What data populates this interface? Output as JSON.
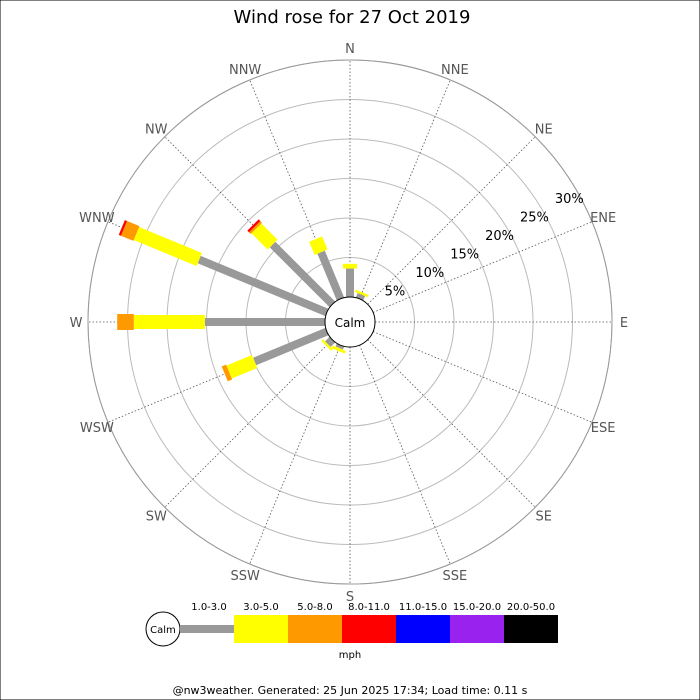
{
  "chart_data": {
    "type": "wind-rose",
    "title": "Wind rose for 27 Oct 2019",
    "directions": [
      "N",
      "NNE",
      "NE",
      "ENE",
      "E",
      "ESE",
      "SE",
      "SSE",
      "S",
      "SSW",
      "SW",
      "WSW",
      "W",
      "WNW",
      "NW",
      "NNW"
    ],
    "ring_labels": [
      "5%",
      "10%",
      "15%",
      "20%",
      "25%",
      "30%"
    ],
    "ring_values": [
      5,
      10,
      15,
      20,
      25,
      30
    ],
    "r_max": 30,
    "calm_label": "Calm",
    "unit": "mph",
    "speed_bins": [
      {
        "label": "1.0-3.0",
        "color": "#999999"
      },
      {
        "label": "3.0-5.0",
        "color": "#ffff00"
      },
      {
        "label": "5.0-8.0",
        "color": "#ff9900"
      },
      {
        "label": "8.0-11.0",
        "color": "#ff0000"
      },
      {
        "label": "11.0-15.0",
        "color": "#0000ff"
      },
      {
        "label": "15.0-20.0",
        "color": "#9922ee"
      },
      {
        "label": "20.0-50.0",
        "color": "#000000"
      }
    ],
    "series": [
      {
        "direction": "N",
        "values": [
          3.6,
          0.6,
          0,
          0,
          0,
          0,
          0
        ]
      },
      {
        "direction": "NNE",
        "values": [
          0.6,
          0.3,
          0,
          0,
          0,
          0,
          0
        ]
      },
      {
        "direction": "SSW",
        "values": [
          0.4,
          0.4,
          0,
          0,
          0,
          0,
          0
        ]
      },
      {
        "direction": "SW",
        "values": [
          0.8,
          0.3,
          0,
          0,
          0,
          0,
          0
        ]
      },
      {
        "direction": "WSW",
        "values": [
          9.9,
          3.5,
          0.6,
          0,
          0,
          0,
          0
        ]
      },
      {
        "direction": "W",
        "values": [
          15.2,
          9.0,
          2.1,
          0,
          0,
          0,
          0
        ]
      },
      {
        "direction": "WNW",
        "values": [
          17.5,
          8.6,
          1.7,
          0.3,
          0,
          0,
          0
        ]
      },
      {
        "direction": "NW",
        "values": [
          10.7,
          2.9,
          0.3,
          0.3,
          0,
          0,
          0
        ]
      },
      {
        "direction": "NNW",
        "values": [
          6.4,
          1.8,
          0,
          0,
          0,
          0,
          0
        ]
      }
    ]
  },
  "footer": "@nw3weather. Generated: 25 Jun 2025 17:34; Load time: 0.11 s"
}
